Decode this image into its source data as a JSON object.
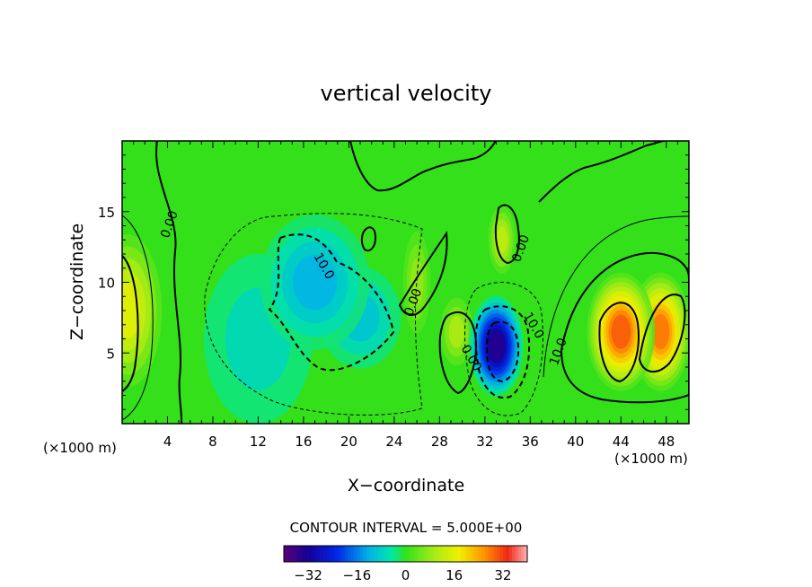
{
  "chart_data": {
    "type": "heatmap",
    "title": "vertical velocity",
    "xlabel": "X−coordinate",
    "ylabel": "Z−coordinate",
    "x_unit_left": "(×1000 m)",
    "x_unit_right": "(×1000 m)",
    "xlim": [
      0,
      50
    ],
    "ylim": [
      0,
      20
    ],
    "xticks": [
      4,
      8,
      12,
      16,
      20,
      24,
      28,
      32,
      36,
      40,
      44,
      48
    ],
    "yticks": [
      5,
      10,
      15
    ],
    "contour_interval_text": "CONTOUR INTERVAL = 5.000E+00",
    "colorbar": {
      "range": [
        -40,
        40
      ],
      "ticks": [
        -32,
        -16,
        0,
        16,
        32
      ],
      "tick_labels": [
        "−32",
        "−16",
        "0",
        "16",
        "32"
      ]
    },
    "contour_labels": [
      {
        "text": "0.00",
        "x": 4.5,
        "y": 14.0
      },
      {
        "text": "10.0",
        "x": 17.5,
        "y": 11.0
      },
      {
        "text": "0.00",
        "x": 26.0,
        "y": 8.5
      },
      {
        "text": "0.00",
        "x": 30.5,
        "y": 4.5
      },
      {
        "text": "0.00",
        "x": 35.5,
        "y": 12.3
      },
      {
        "text": "10.0",
        "x": 36.0,
        "y": 6.8
      },
      {
        "text": "10.0",
        "x": 38.8,
        "y": 5.0
      }
    ],
    "field_features": [
      {
        "kind": "max",
        "x": 0.5,
        "y": 8.0,
        "value": 16,
        "sx": 2.5,
        "sz": 4.5
      },
      {
        "kind": "max",
        "x": 44.0,
        "y": 6.5,
        "value": 30,
        "sx": 2.5,
        "sz": 3.5
      },
      {
        "kind": "max",
        "x": 47.5,
        "y": 6.5,
        "value": 28,
        "sx": 2.2,
        "sz": 3.5
      },
      {
        "kind": "max",
        "x": 33.5,
        "y": 13.0,
        "value": 12,
        "sx": 1.0,
        "sz": 2.0
      },
      {
        "kind": "max",
        "x": 29.5,
        "y": 6.5,
        "value": 10,
        "sx": 1.2,
        "sz": 2.0
      },
      {
        "kind": "max",
        "x": 26.0,
        "y": 10.0,
        "value": 8,
        "sx": 1.0,
        "sz": 3.0
      },
      {
        "kind": "min",
        "x": 33.0,
        "y": 5.5,
        "value": -34,
        "sx": 2.0,
        "sz": 3.0
      },
      {
        "kind": "min",
        "x": 17.0,
        "y": 10.0,
        "value": -12,
        "sx": 4.0,
        "sz": 4.0
      },
      {
        "kind": "min",
        "x": 21.0,
        "y": 7.5,
        "value": -10,
        "sx": 3.0,
        "sz": 3.0
      },
      {
        "kind": "min",
        "x": 12.0,
        "y": 6.0,
        "value": -7,
        "sx": 4.0,
        "sz": 5.0
      }
    ]
  }
}
